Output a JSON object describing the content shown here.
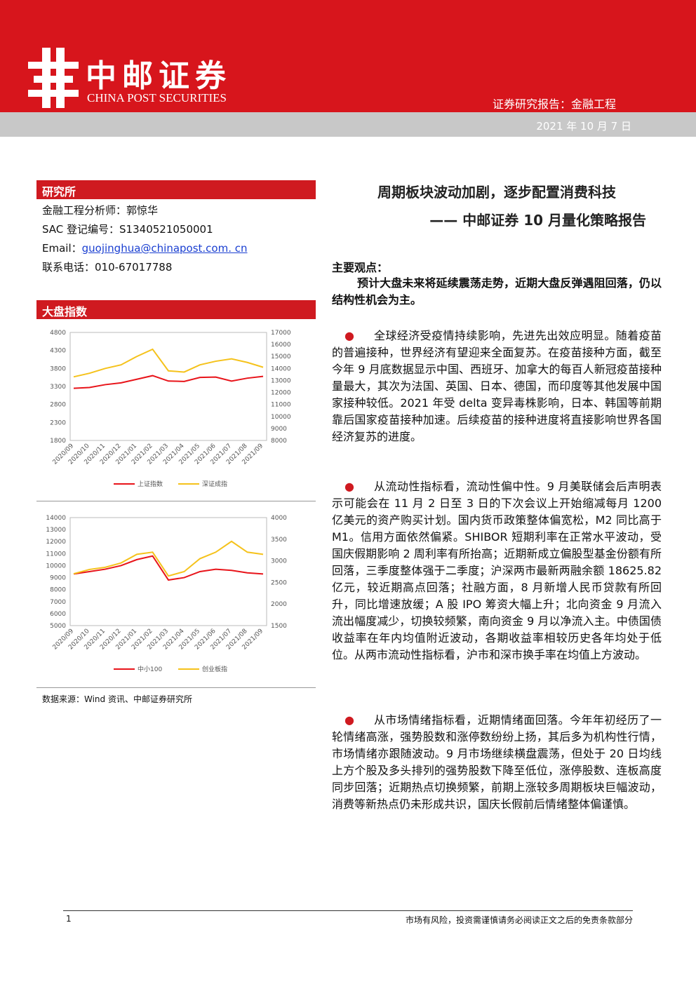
{
  "header": {
    "brand": "中邮证券",
    "brand_en": "CHINA POST SECURITIES",
    "report_type": "证券研究报告：金融工程",
    "date": "2021 年 10 月 7 日"
  },
  "sidebar": {
    "section1": "研究所",
    "analyst": "金融工程分析师：郭惊华",
    "sac": "SAC 登记编号：S1340521050001",
    "email_label": "Email：",
    "email": "guojinghua@chinapost.com. cn",
    "phone": "联系电话：010-67017788",
    "section2": "大盘指数",
    "source": "数据来源：Wind 资讯、中邮证券研究所"
  },
  "chart_data": [
    {
      "type": "line",
      "categories": [
        "2020/09",
        "2020/10",
        "2020/11",
        "2020/12",
        "2021/01",
        "2021/02",
        "2021/03",
        "2021/04",
        "2021/05",
        "2021/06",
        "2021/07",
        "2021/08",
        "2021/09"
      ],
      "ylim": [
        1800,
        4800
      ],
      "yticks": [
        1800,
        2300,
        2800,
        3300,
        3800,
        4300,
        4800
      ],
      "y2lim": [
        8000,
        17000
      ],
      "y2ticks": [
        8000,
        9000,
        10000,
        11000,
        12000,
        13000,
        14000,
        15000,
        16000,
        17000
      ],
      "series": [
        {
          "name": "上证指数",
          "color": "#e8141a",
          "values": [
            3250,
            3270,
            3350,
            3400,
            3500,
            3600,
            3450,
            3440,
            3550,
            3560,
            3450,
            3530,
            3580
          ]
        },
        {
          "name": "深证成指",
          "color": "#f5c21b",
          "axis": "y2",
          "values": [
            13300,
            13600,
            14000,
            14300,
            15000,
            15600,
            13800,
            13700,
            14300,
            14600,
            14800,
            14500,
            14100
          ]
        }
      ]
    },
    {
      "type": "line",
      "categories": [
        "2020/09",
        "2020/10",
        "2020/11",
        "2020/12",
        "2021/01",
        "2021/02",
        "2021/03",
        "2021/04",
        "2021/05",
        "2021/06",
        "2021/07",
        "2021/08",
        "2021/09"
      ],
      "ylim": [
        5000,
        14000
      ],
      "yticks": [
        5000,
        6000,
        7000,
        8000,
        9000,
        10000,
        11000,
        12000,
        13000,
        14000
      ],
      "y2lim": [
        1500,
        4000
      ],
      "y2ticks": [
        1500,
        2000,
        2500,
        3000,
        3500,
        4000
      ],
      "series": [
        {
          "name": "中小100",
          "color": "#e8141a",
          "values": [
            9300,
            9500,
            9700,
            10000,
            10500,
            10800,
            8800,
            9000,
            9500,
            9700,
            9600,
            9400,
            9300
          ]
        },
        {
          "name": "创业板指",
          "color": "#f5c21b",
          "axis": "y2",
          "values": [
            2700,
            2800,
            2850,
            2950,
            3150,
            3200,
            2650,
            2750,
            3050,
            3200,
            3450,
            3200,
            3150
          ]
        }
      ]
    }
  ],
  "main": {
    "title": "周期板块波动加剧，逐步配置消费科技",
    "subtitle": "—— 中邮证券 10 月量化策略报告",
    "key_label": "主要观点：",
    "key_text": "预计大盘未来将延续震荡走势，近期大盘反弹遇阻回落，仍以结构性机会为主。",
    "paragraphs": [
      "全球经济受疫情持续影响，先进先出效应明显。随着疫苗的普遍接种，世界经济有望迎来全面复苏。在疫苗接种方面，截至今年 9 月底数据显示中国、西班牙、加拿大的每百人新冠疫苗接种量最大，其次为法国、英国、日本、德国，而印度等其他发展中国家接种较低。2021 年受 delta 变异毒株影响，日本、韩国等前期靠后国家疫苗接种加速。后续疫苗的接种进度将直接影响世界各国经济复苏的进度。",
      "从流动性指标看，流动性偏中性。9 月美联储会后声明表示可能会在 11 月 2 日至 3 日的下次会议上开始缩减每月 1200 亿美元的资产购买计划。国内货币政策整体偏宽松，M2 同比高于 M1。信用方面依然偏紧。SHIBOR 短期利率在正常水平波动，受国庆假期影响 2 周利率有所抬高；近期新成立偏股型基金份额有所回落，三季度整体强于二季度；沪深两市最新两融余额 18625.82 亿元，较近期高点回落；社融方面，8 月新增人民币贷款有所回升，同比增速放缓；A 股 IPO 筹资大幅上升；北向资金 9 月流入流出幅度减少，切换较频繁，南向资金 9 月以净流入主。中债国债收益率在年内均值附近波动，各期收益率相较历史各年均处于低位。从两市流动性指标看，沪市和深市换手率在均值上方波动。",
      "从市场情绪指标看，近期情绪面回落。今年年初经历了一轮情绪高涨，强势股数和涨停数纷纷上扬，其后多为机构性行情，市场情绪亦跟随波动。9 月市场继续横盘震荡，但处于 20 日均线上方个股及多头排列的强势股数下降至低位，涨停股数、连板高度同步回落；近期热点切换频繁，前期上涨较多周期板块巨幅波动，消费等新热点仍未形成共识，国庆长假前后情绪整体偏谨慎。"
    ]
  },
  "footer": {
    "page": "1",
    "disclaimer": "市场有风险，投资需谨慎请务必阅读正文之后的免责条款部分"
  }
}
